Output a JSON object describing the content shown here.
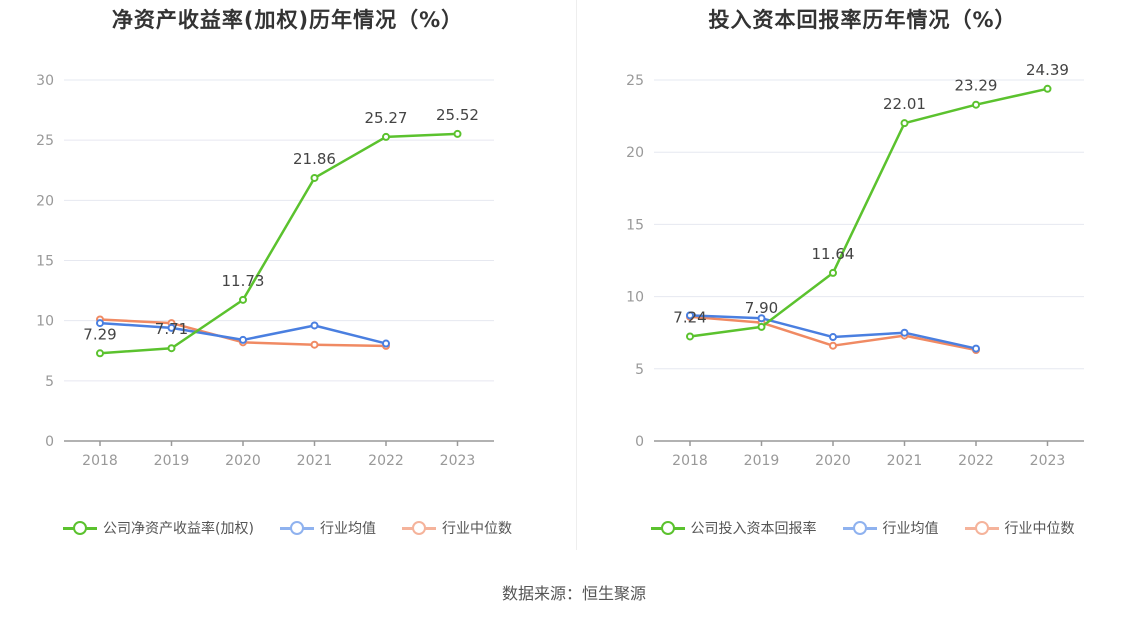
{
  "colors": {
    "company": "#5bc22e",
    "industry_avg": "#4a7fe0",
    "industry_median": "#f08a63",
    "legend_avg": "#8fb2ef",
    "legend_median": "#f5b39b"
  },
  "legend": {
    "avg_label": "行业均值",
    "median_label": "行业中位数"
  },
  "source_label": "数据来源：恒生聚源",
  "chart_data": [
    {
      "type": "line",
      "title": "净资产收益率(加权)历年情况（%）",
      "x": [
        "2018",
        "2019",
        "2020",
        "2021",
        "2022",
        "2023"
      ],
      "ylim": [
        0,
        30
      ],
      "yticks": [
        0,
        5,
        10,
        15,
        20,
        25,
        30
      ],
      "grid": true,
      "legend_position": "bottom",
      "series": [
        {
          "name": "公司净资产收益率(加权)",
          "values": [
            7.29,
            7.71,
            11.73,
            21.86,
            25.27,
            25.52
          ],
          "labels": [
            "7.29",
            "7.71",
            "11.73",
            "21.86",
            "25.27",
            "25.52"
          ]
        },
        {
          "name": "行业均值",
          "values": [
            9.8,
            9.4,
            8.4,
            9.6,
            8.1,
            null
          ]
        },
        {
          "name": "行业中位数",
          "values": [
            10.1,
            9.8,
            8.2,
            8.0,
            7.9,
            null
          ]
        }
      ]
    },
    {
      "type": "line",
      "title": "投入资本回报率历年情况（%）",
      "x": [
        "2018",
        "2019",
        "2020",
        "2021",
        "2022",
        "2023"
      ],
      "ylim": [
        0,
        25
      ],
      "yticks": [
        0,
        5,
        10,
        15,
        20,
        25
      ],
      "grid": true,
      "legend_position": "bottom",
      "series": [
        {
          "name": "公司投入资本回报率",
          "values": [
            7.24,
            7.9,
            11.64,
            22.01,
            23.29,
            24.39
          ],
          "labels": [
            "7.24",
            "7.90",
            "11.64",
            "22.01",
            "23.29",
            "24.39"
          ]
        },
        {
          "name": "行业均值",
          "values": [
            8.7,
            8.5,
            7.2,
            7.5,
            6.4,
            null
          ]
        },
        {
          "name": "行业中位数",
          "values": [
            8.6,
            8.2,
            6.6,
            7.3,
            6.3,
            null
          ]
        }
      ]
    }
  ]
}
